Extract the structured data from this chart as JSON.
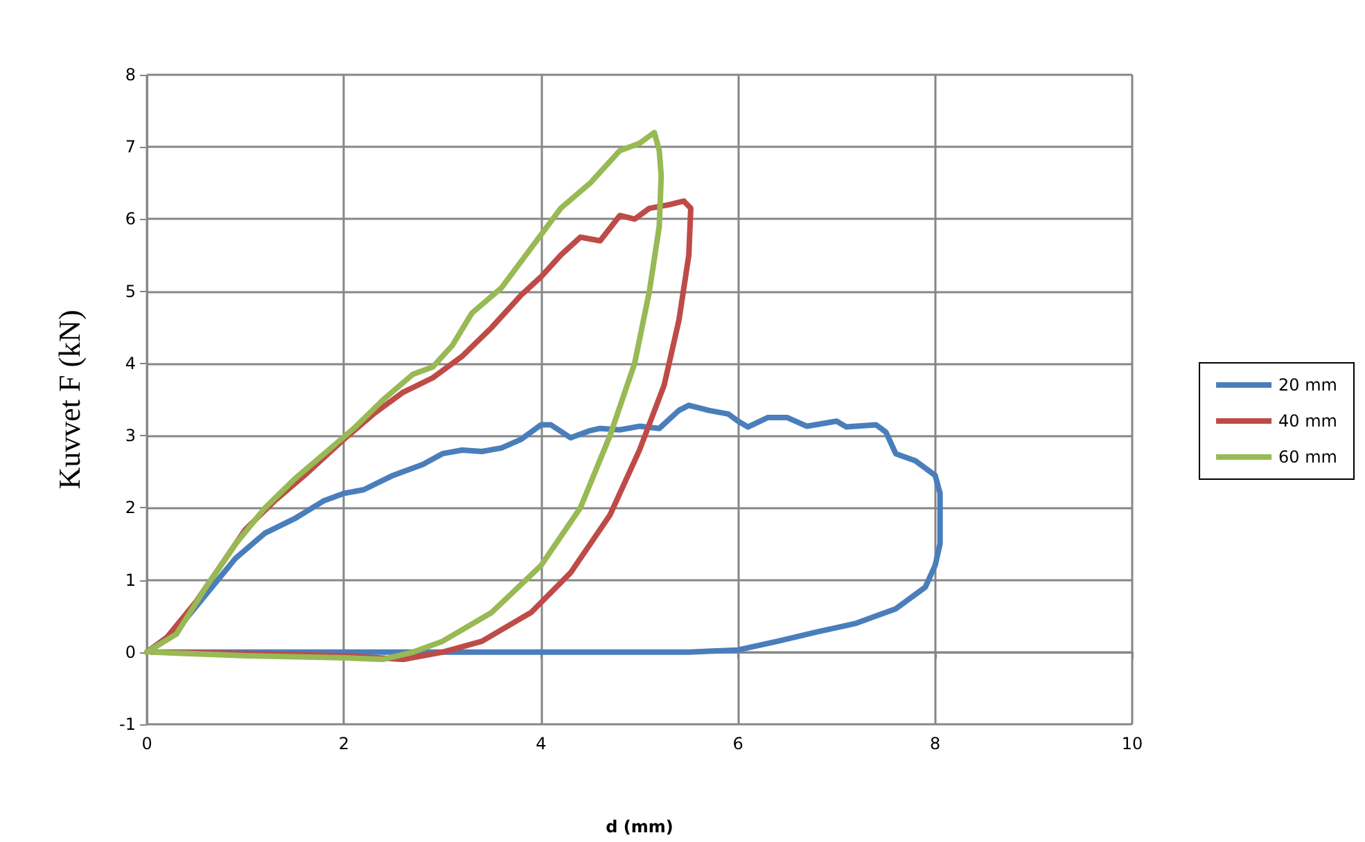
{
  "chart_data": {
    "type": "line",
    "xlabel": "d (mm)",
    "ylabel": "Kuvvet F (kN)",
    "xlim": [
      0,
      10
    ],
    "xticks": [
      0,
      2,
      4,
      6,
      8,
      10
    ],
    "ylim": [
      -1,
      8
    ],
    "yticks": [
      -1,
      0,
      1,
      2,
      3,
      4,
      5,
      6,
      7,
      8
    ],
    "grid": true,
    "legend": "right",
    "marker": "none",
    "line_style": "solid",
    "series": [
      {
        "name": "20 mm",
        "color": "#4a7ebb",
        "x": [
          0,
          0.3,
          0.6,
          0.9,
          1.2,
          1.5,
          1.8,
          2.0,
          2.2,
          2.5,
          2.8,
          3.0,
          3.2,
          3.4,
          3.6,
          3.8,
          4.0,
          4.1,
          4.3,
          4.5,
          4.6,
          4.8,
          5.0,
          5.2,
          5.4,
          5.5,
          5.7,
          5.9,
          6.0,
          6.1,
          6.3,
          6.5,
          6.7,
          7.0,
          7.1,
          7.4,
          7.5,
          7.6,
          7.8,
          8.0,
          8.05,
          8.05,
          8.0,
          7.9,
          7.6,
          7.2,
          6.8,
          6.4,
          6.0,
          5.5,
          4.0,
          2.0,
          0.05
        ],
        "values": [
          0,
          0.3,
          0.8,
          1.3,
          1.65,
          1.85,
          2.1,
          2.2,
          2.25,
          2.45,
          2.6,
          2.75,
          2.8,
          2.78,
          2.83,
          2.95,
          3.15,
          3.15,
          2.97,
          3.07,
          3.1,
          3.08,
          3.13,
          3.1,
          3.35,
          3.42,
          3.35,
          3.3,
          3.2,
          3.12,
          3.25,
          3.25,
          3.13,
          3.2,
          3.12,
          3.15,
          3.05,
          2.75,
          2.65,
          2.45,
          2.2,
          1.5,
          1.2,
          0.9,
          0.6,
          0.4,
          0.28,
          0.15,
          0.03,
          0,
          0,
          0,
          0
        ]
      },
      {
        "name": "40 mm",
        "color": "#be4b48",
        "x": [
          0,
          0.2,
          0.5,
          0.8,
          1.0,
          1.3,
          1.6,
          2.0,
          2.3,
          2.6,
          2.9,
          3.2,
          3.5,
          3.8,
          4.0,
          4.2,
          4.4,
          4.6,
          4.8,
          4.95,
          5.1,
          5.3,
          5.45,
          5.52,
          5.5,
          5.4,
          5.25,
          5.0,
          4.7,
          4.3,
          3.9,
          3.4,
          3.0,
          2.6,
          2.0,
          1.0,
          0.05
        ],
        "values": [
          0,
          0.2,
          0.7,
          1.3,
          1.7,
          2.1,
          2.45,
          2.95,
          3.3,
          3.6,
          3.8,
          4.1,
          4.5,
          4.95,
          5.2,
          5.5,
          5.75,
          5.7,
          6.05,
          6.0,
          6.15,
          6.2,
          6.25,
          6.15,
          5.5,
          4.6,
          3.7,
          2.8,
          1.9,
          1.1,
          0.55,
          0.15,
          0,
          -0.1,
          -0.05,
          -0.02,
          0
        ]
      },
      {
        "name": "60 mm",
        "color": "#98b954",
        "x": [
          0,
          0.3,
          0.6,
          0.9,
          1.2,
          1.5,
          1.8,
          2.1,
          2.4,
          2.7,
          2.9,
          3.1,
          3.3,
          3.6,
          3.9,
          4.2,
          4.5,
          4.8,
          5.0,
          5.15,
          5.2,
          5.22,
          5.2,
          5.1,
          4.95,
          4.7,
          4.4,
          4.0,
          3.5,
          3.0,
          2.7,
          2.4,
          2.0,
          1.0,
          0.05
        ],
        "values": [
          0,
          0.25,
          0.9,
          1.5,
          2.0,
          2.4,
          2.75,
          3.1,
          3.5,
          3.85,
          3.95,
          4.25,
          4.7,
          5.05,
          5.6,
          6.15,
          6.5,
          6.95,
          7.05,
          7.2,
          6.95,
          6.6,
          5.9,
          5.0,
          4.0,
          3.0,
          2.0,
          1.2,
          0.55,
          0.15,
          0,
          -0.1,
          -0.08,
          -0.05,
          0
        ]
      }
    ]
  }
}
